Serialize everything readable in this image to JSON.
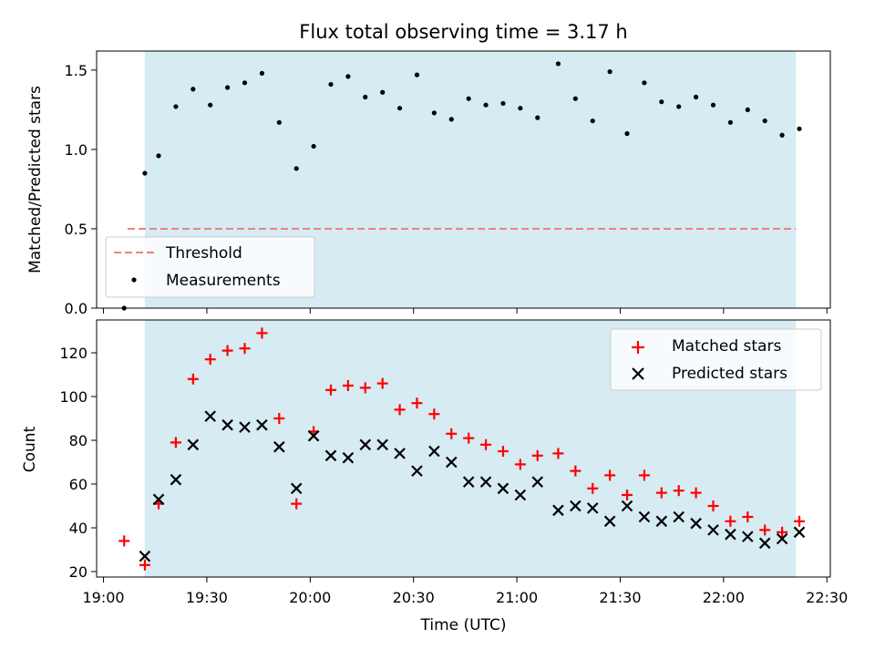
{
  "chart_data": [
    {
      "type": "scatter",
      "title": "Flux total observing time = 3.17 h",
      "ylabel": "Matched/Predicted stars",
      "xlabel": "",
      "ylim": [
        0,
        1.62
      ],
      "yticks": [
        {
          "v": 0,
          "label": "0.0"
        },
        {
          "v": 0.5,
          "label": "0.5"
        },
        {
          "v": 1.0,
          "label": "1.0"
        },
        {
          "v": 1.5,
          "label": "1.5"
        }
      ],
      "shaded_region": {
        "x_start": "19:12",
        "x_end": "22:21",
        "color": "#add8e6"
      },
      "threshold": {
        "name": "Threshold",
        "value": 0.5,
        "x_start": "19:07",
        "x_end": "22:21",
        "color": "#f08080"
      },
      "legend": {
        "placement": "lower-left",
        "entries": [
          "Threshold",
          "Measurements"
        ]
      },
      "series": [
        {
          "name": "Measurements",
          "marker": "dot",
          "color": "#000000",
          "points": [
            [
              "19:06",
              0.0
            ],
            [
              "19:12",
              0.85
            ],
            [
              "19:16",
              0.96
            ],
            [
              "19:21",
              1.27
            ],
            [
              "19:26",
              1.38
            ],
            [
              "19:31",
              1.28
            ],
            [
              "19:36",
              1.39
            ],
            [
              "19:41",
              1.42
            ],
            [
              "19:46",
              1.48
            ],
            [
              "19:51",
              1.17
            ],
            [
              "19:56",
              0.88
            ],
            [
              "20:01",
              1.02
            ],
            [
              "20:06",
              1.41
            ],
            [
              "20:11",
              1.46
            ],
            [
              "20:16",
              1.33
            ],
            [
              "20:21",
              1.36
            ],
            [
              "20:26",
              1.26
            ],
            [
              "20:31",
              1.47
            ],
            [
              "20:36",
              1.23
            ],
            [
              "20:41",
              1.19
            ],
            [
              "20:46",
              1.32
            ],
            [
              "20:51",
              1.28
            ],
            [
              "20:56",
              1.29
            ],
            [
              "21:01",
              1.26
            ],
            [
              "21:06",
              1.2
            ],
            [
              "21:12",
              1.54
            ],
            [
              "21:17",
              1.32
            ],
            [
              "21:22",
              1.18
            ],
            [
              "21:27",
              1.49
            ],
            [
              "21:32",
              1.1
            ],
            [
              "21:37",
              1.42
            ],
            [
              "21:42",
              1.3
            ],
            [
              "21:47",
              1.27
            ],
            [
              "21:52",
              1.33
            ],
            [
              "21:57",
              1.28
            ],
            [
              "22:02",
              1.17
            ],
            [
              "22:07",
              1.25
            ],
            [
              "22:12",
              1.18
            ],
            [
              "22:17",
              1.09
            ],
            [
              "22:22",
              1.13
            ]
          ]
        }
      ]
    },
    {
      "type": "scatter",
      "title": "",
      "ylabel": "Count",
      "xlabel": "Time (UTC)",
      "ylim": [
        17.5,
        135
      ],
      "yticks": [
        {
          "v": 20,
          "label": "20"
        },
        {
          "v": 40,
          "label": "40"
        },
        {
          "v": 60,
          "label": "60"
        },
        {
          "v": 80,
          "label": "80"
        },
        {
          "v": 100,
          "label": "100"
        },
        {
          "v": 120,
          "label": "120"
        }
      ],
      "xlim": [
        "18:58",
        "22:31"
      ],
      "xticks": [
        "19:00",
        "19:30",
        "20:00",
        "20:30",
        "21:00",
        "21:30",
        "22:00",
        "22:30"
      ],
      "shaded_region": {
        "x_start": "19:12",
        "x_end": "22:21",
        "color": "#add8e6"
      },
      "legend": {
        "placement": "top-right",
        "entries": [
          "Matched stars",
          "Predicted stars"
        ]
      },
      "series": [
        {
          "name": "Matched stars",
          "marker": "plus",
          "color": "#ff0000",
          "points": [
            [
              "19:06",
              34
            ],
            [
              "19:12",
              23
            ],
            [
              "19:16",
              51
            ],
            [
              "19:21",
              79
            ],
            [
              "19:26",
              108
            ],
            [
              "19:31",
              117
            ],
            [
              "19:36",
              121
            ],
            [
              "19:41",
              122
            ],
            [
              "19:46",
              129
            ],
            [
              "19:51",
              90
            ],
            [
              "19:56",
              51
            ],
            [
              "20:01",
              84
            ],
            [
              "20:06",
              103
            ],
            [
              "20:11",
              105
            ],
            [
              "20:16",
              104
            ],
            [
              "20:21",
              106
            ],
            [
              "20:26",
              94
            ],
            [
              "20:31",
              97
            ],
            [
              "20:36",
              92
            ],
            [
              "20:41",
              83
            ],
            [
              "20:46",
              81
            ],
            [
              "20:51",
              78
            ],
            [
              "20:56",
              75
            ],
            [
              "21:01",
              69
            ],
            [
              "21:06",
              73
            ],
            [
              "21:12",
              74
            ],
            [
              "21:17",
              66
            ],
            [
              "21:22",
              58
            ],
            [
              "21:27",
              64
            ],
            [
              "21:32",
              55
            ],
            [
              "21:37",
              64
            ],
            [
              "21:42",
              56
            ],
            [
              "21:47",
              57
            ],
            [
              "21:52",
              56
            ],
            [
              "21:57",
              50
            ],
            [
              "22:02",
              43
            ],
            [
              "22:07",
              45
            ],
            [
              "22:12",
              39
            ],
            [
              "22:17",
              38
            ],
            [
              "22:22",
              43
            ]
          ]
        },
        {
          "name": "Predicted stars",
          "marker": "x",
          "color": "#000000",
          "points": [
            [
              "19:12",
              27
            ],
            [
              "19:16",
              53
            ],
            [
              "19:21",
              62
            ],
            [
              "19:26",
              78
            ],
            [
              "19:31",
              91
            ],
            [
              "19:36",
              87
            ],
            [
              "19:41",
              86
            ],
            [
              "19:46",
              87
            ],
            [
              "19:51",
              77
            ],
            [
              "19:56",
              58
            ],
            [
              "20:01",
              82
            ],
            [
              "20:06",
              73
            ],
            [
              "20:11",
              72
            ],
            [
              "20:16",
              78
            ],
            [
              "20:21",
              78
            ],
            [
              "20:26",
              74
            ],
            [
              "20:31",
              66
            ],
            [
              "20:36",
              75
            ],
            [
              "20:41",
              70
            ],
            [
              "20:46",
              61
            ],
            [
              "20:51",
              61
            ],
            [
              "20:56",
              58
            ],
            [
              "21:01",
              55
            ],
            [
              "21:06",
              61
            ],
            [
              "21:12",
              48
            ],
            [
              "21:17",
              50
            ],
            [
              "21:22",
              49
            ],
            [
              "21:27",
              43
            ],
            [
              "21:32",
              50
            ],
            [
              "21:37",
              45
            ],
            [
              "21:42",
              43
            ],
            [
              "21:47",
              45
            ],
            [
              "21:52",
              42
            ],
            [
              "21:57",
              39
            ],
            [
              "22:02",
              37
            ],
            [
              "22:07",
              36
            ],
            [
              "22:12",
              33
            ],
            [
              "22:17",
              35
            ],
            [
              "22:22",
              38
            ]
          ]
        }
      ]
    }
  ]
}
